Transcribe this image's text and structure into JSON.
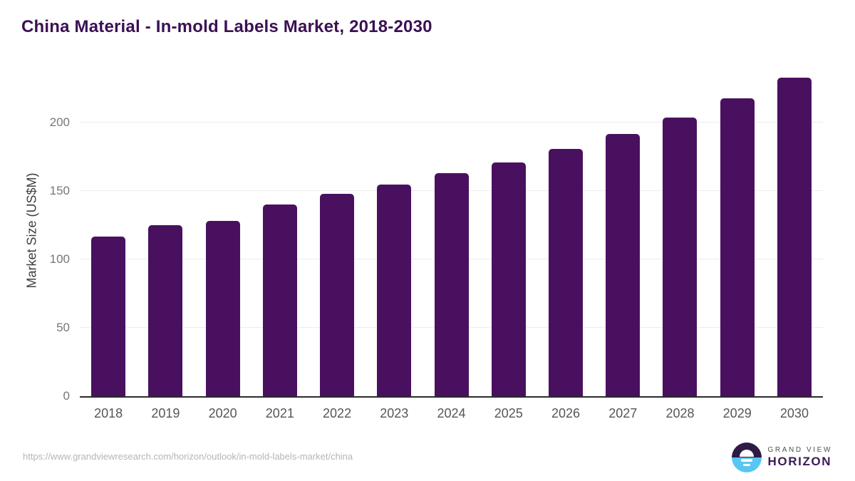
{
  "title": "China Material - In-mold Labels Market, 2018-2030",
  "footer": {
    "source_url": "https://www.grandviewresearch.com/horizon/outlook/in-mold-labels-market/china",
    "logo_top": "GRAND VIEW",
    "logo_bottom": "HORIZON"
  },
  "colors": {
    "bar": "#4a1060",
    "title": "#3b1053",
    "gridline": "#ececec",
    "axis_line": "#2b2b2b",
    "tick_label": "#777777",
    "x_label": "#565656",
    "url_text": "#b5b5b5",
    "logo_dark": "#2d1a45",
    "logo_blue": "#59c6f2",
    "logo_text": "#3a1b56"
  },
  "chart_data": {
    "type": "bar",
    "title": "China Material - In-mold Labels Market, 2018-2030",
    "categories": [
      "2018",
      "2019",
      "2020",
      "2021",
      "2022",
      "2023",
      "2024",
      "2025",
      "2026",
      "2027",
      "2028",
      "2029",
      "2030"
    ],
    "values": [
      117,
      125,
      128,
      140,
      148,
      155,
      163,
      171,
      181,
      192,
      204,
      218,
      233
    ],
    "xlabel": "",
    "ylabel": "Market Size (US$M)",
    "ylim": [
      0,
      245
    ],
    "yticks": [
      0,
      50,
      100,
      150,
      200
    ],
    "grid": true,
    "legend": false,
    "bar_color": "#4a1060"
  }
}
